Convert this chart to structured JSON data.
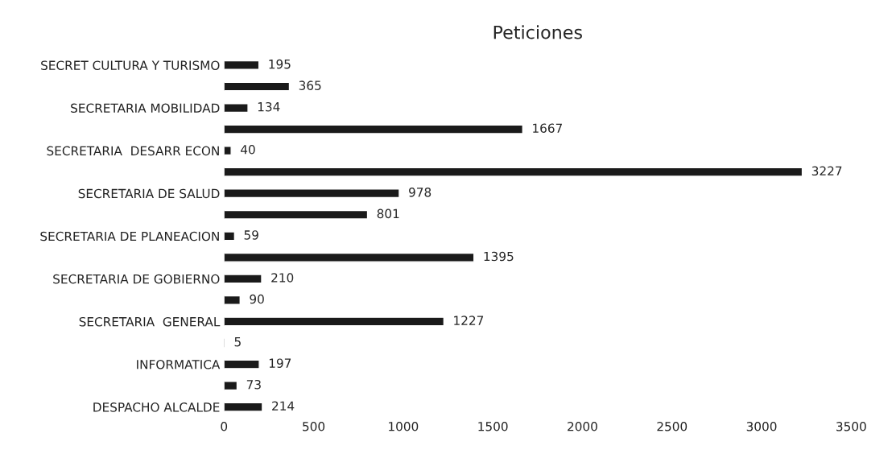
{
  "chart_data": {
    "type": "bar",
    "orientation": "horizontal",
    "title": "Peticiones",
    "categories": [
      "SECRET CULTURA Y TURISMO",
      null,
      "SECRETARIA MOBILIDAD",
      null,
      "SECRETARIA  DESARR ECON",
      null,
      "SECRETARIA DE SALUD",
      null,
      "SECRETARIA DE PLANEACION",
      null,
      "SECRETARIA DE GOBIERNO",
      null,
      "SECRETARIA  GENERAL",
      null,
      "INFORMATICA",
      null,
      "DESPACHO ALCALDE"
    ],
    "values": [
      195,
      365,
      134,
      1667,
      40,
      3227,
      978,
      801,
      59,
      1395,
      210,
      90,
      1227,
      5,
      197,
      73,
      214
    ],
    "color": "#1a1a1a",
    "xlim": [
      0,
      3500
    ],
    "xticks": [
      0,
      500,
      1000,
      1500,
      2000,
      2500,
      3000,
      3500
    ],
    "data_labels": true,
    "grid": false,
    "legend": false
  }
}
